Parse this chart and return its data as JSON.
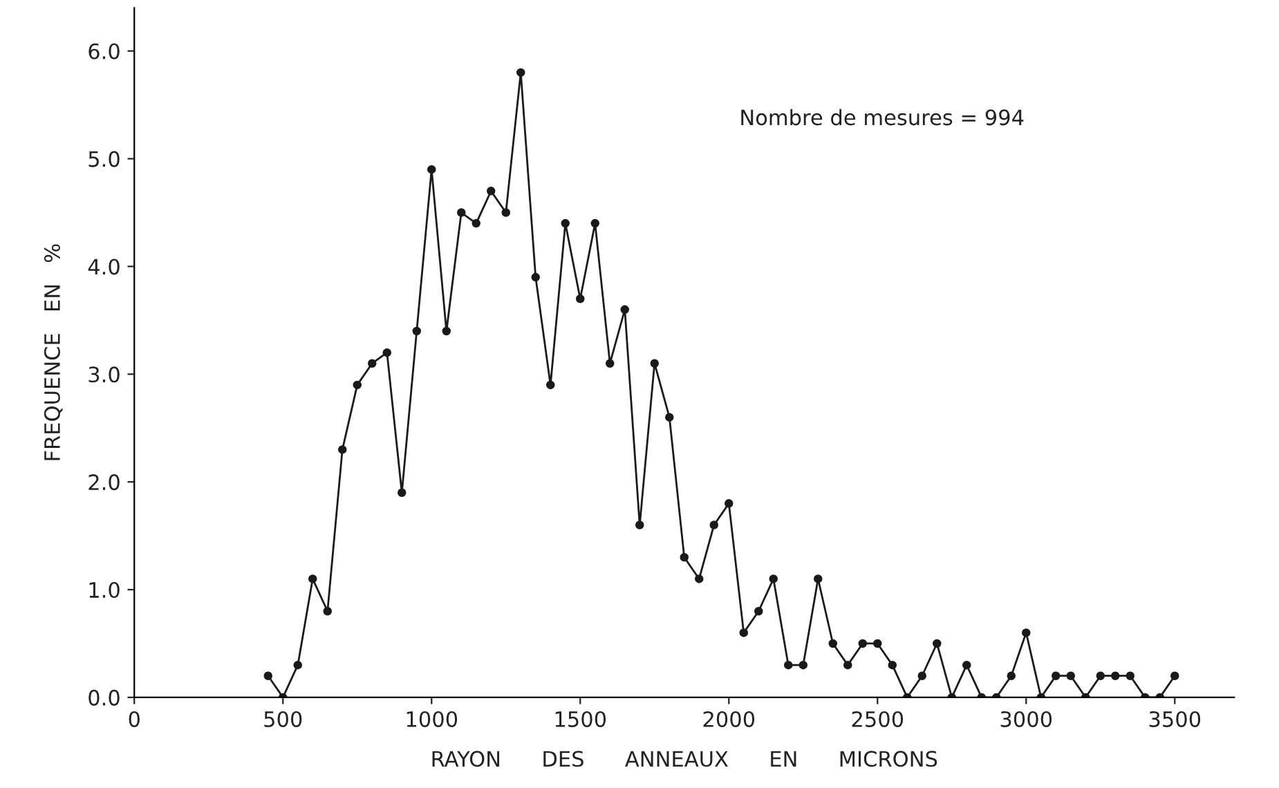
{
  "chart_data": {
    "type": "line",
    "xlabel": "RAYON      DES      ANNEAUX      EN      MICRONS",
    "ylabel": "FREQUENCE   EN   %",
    "annotations": [
      "Nombre de mesures = 994"
    ],
    "x": [
      450,
      500,
      550,
      600,
      650,
      700,
      750,
      800,
      850,
      900,
      950,
      1000,
      1050,
      1100,
      1150,
      1200,
      1250,
      1300,
      1350,
      1400,
      1450,
      1500,
      1550,
      1600,
      1650,
      1700,
      1750,
      1800,
      1850,
      1900,
      1950,
      2000,
      2050,
      2100,
      2150,
      2200,
      2250,
      2300,
      2350,
      2400,
      2450,
      2500,
      2550,
      2600,
      2650,
      2700,
      2750,
      2800,
      2850,
      2900,
      2950,
      3000,
      3050,
      3100,
      3150,
      3200,
      3250,
      3300,
      3350,
      3400,
      3450,
      3500
    ],
    "series": [
      {
        "color": "#1a1a1a",
        "values": [
          0.2,
          0.0,
          0.3,
          1.1,
          0.8,
          2.3,
          2.9,
          3.1,
          3.2,
          1.9,
          3.4,
          4.9,
          3.4,
          4.5,
          4.4,
          4.7,
          4.5,
          5.8,
          3.9,
          2.9,
          4.4,
          3.7,
          4.4,
          3.1,
          3.6,
          1.6,
          3.1,
          2.6,
          1.3,
          1.1,
          1.6,
          1.8,
          0.6,
          0.8,
          1.1,
          0.3,
          0.3,
          1.1,
          0.5,
          0.3,
          0.5,
          0.5,
          0.3,
          0.0,
          0.2,
          0.5,
          0.0,
          0.3,
          0.0,
          0.0,
          0.2,
          0.6,
          0.0,
          0.2,
          0.2,
          0.0,
          0.2,
          0.2,
          0.2,
          0.0,
          0.0,
          0.2
        ]
      }
    ],
    "xlim": [
      0,
      3700
    ],
    "xticks": [
      0,
      500,
      1000,
      1500,
      2000,
      2500,
      3000,
      3500
    ],
    "ylim": [
      0,
      6.4
    ],
    "yticks": [
      {
        "value": 0,
        "label": "0.0"
      },
      {
        "value": 1,
        "label": "1.0"
      },
      {
        "value": 2,
        "label": "2.0"
      },
      {
        "value": 3,
        "label": "3.0"
      },
      {
        "value": 4,
        "label": "4.0"
      },
      {
        "value": 5,
        "label": "5.0"
      },
      {
        "value": 6,
        "label": "6.0"
      }
    ],
    "grid": false,
    "legend": false,
    "marker": "circle",
    "line_style": "solid"
  }
}
